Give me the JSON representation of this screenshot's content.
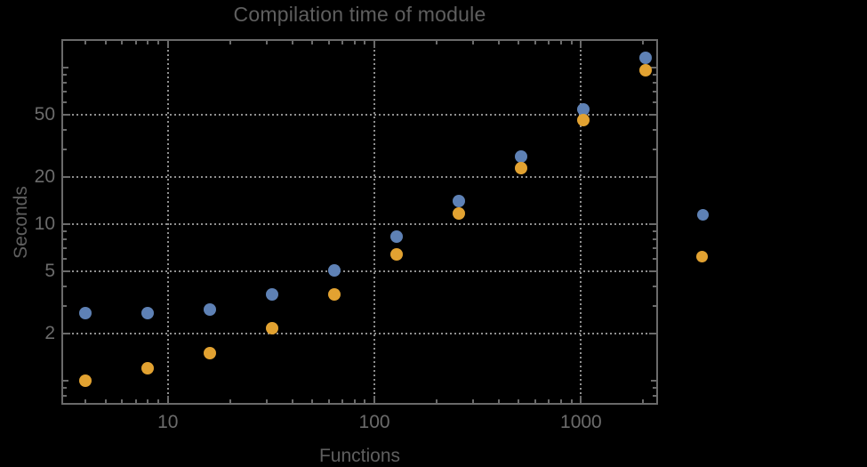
{
  "chart_data": {
    "type": "scatter",
    "title": "Compilation time of module",
    "xlabel": "Functions",
    "ylabel": "Seconds",
    "x_scale": "log",
    "y_scale": "log",
    "x": [
      4,
      8,
      16,
      32,
      64,
      128,
      256,
      512,
      1024,
      2048
    ],
    "series": [
      {
        "name": "series-1-blue",
        "color": "#5E81B5",
        "values": [
          2.7,
          2.7,
          2.85,
          3.55,
          5.05,
          8.3,
          14.0,
          27.0,
          54.0,
          116.0
        ]
      },
      {
        "name": "series-2-orange",
        "color": "#E2A231",
        "values": [
          1.0,
          1.2,
          1.5,
          2.15,
          3.55,
          6.4,
          11.7,
          22.7,
          46.0,
          96.0
        ]
      }
    ],
    "x_ticks": {
      "values": [
        10,
        100,
        1000
      ],
      "labels": [
        "10",
        "100",
        "1000"
      ]
    },
    "y_ticks": {
      "values": [
        2,
        5,
        10,
        20,
        50
      ],
      "labels": [
        "2",
        "5",
        "10",
        "20",
        "50"
      ]
    },
    "y_unlabeled_ticks": [
      1,
      100
    ],
    "xlim": [
      3.05,
      2360
    ],
    "ylim": [
      0.7,
      152
    ],
    "grid": "dotted lines at labeled major ticks",
    "legend": {
      "position": "right of frame",
      "markers": [
        {
          "name": "series-1-blue",
          "color": "#5E81B5",
          "label": ""
        },
        {
          "name": "series-2-orange",
          "color": "#E2A231",
          "label": ""
        }
      ]
    }
  },
  "colors": {
    "background": "#000000",
    "frame": "#6a6a6a",
    "gridline": "#8f8f8f",
    "tick_label": "#6b6b6b",
    "title_text": "#5f5f5f",
    "series_blue": "#5E81B5",
    "series_orange": "#E2A231"
  }
}
